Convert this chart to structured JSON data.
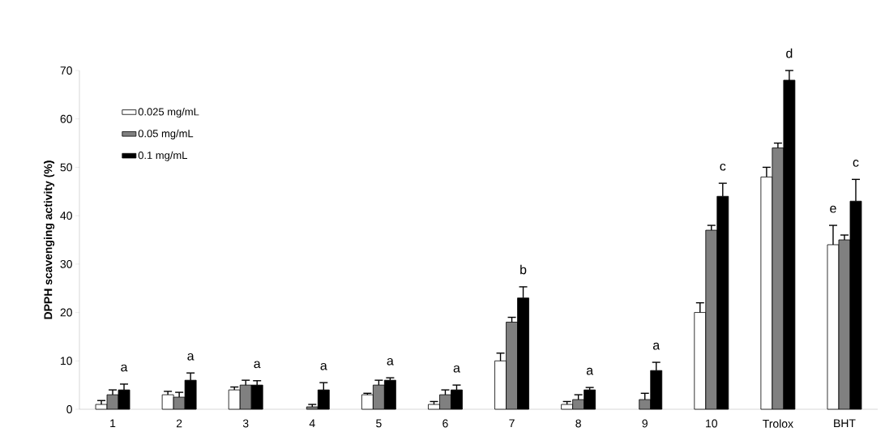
{
  "chart_data": {
    "type": "bar",
    "ylabel": "DPPH scavenging activity (%)",
    "categories": [
      "1",
      "2",
      "3",
      "4",
      "5",
      "6",
      "7",
      "8",
      "9",
      "10",
      "Trolox",
      "BHT"
    ],
    "series": [
      {
        "name": "0.025 mg/mL",
        "color": "#ffffff",
        "values": [
          1,
          3,
          4,
          null,
          3,
          1,
          10,
          1,
          null,
          20,
          48,
          34
        ],
        "errors": [
          0.8,
          0.7,
          0.6,
          null,
          0.3,
          0.6,
          1.6,
          0.6,
          null,
          2,
          2,
          4
        ],
        "value_labels": [
          null,
          null,
          null,
          null,
          null,
          null,
          null,
          null,
          null,
          null,
          null,
          "e"
        ]
      },
      {
        "name": "0.05 mg/mL",
        "color": "#808080",
        "values": [
          3,
          2.5,
          5,
          0.5,
          5,
          3,
          18,
          2,
          2,
          37,
          54,
          35
        ],
        "errors": [
          1,
          1,
          1,
          0.5,
          1,
          1,
          1,
          1,
          1.3,
          1,
          1,
          1
        ]
      },
      {
        "name": "0.1 mg/mL",
        "color": "#000000",
        "values": [
          4,
          6,
          5,
          4,
          6,
          4,
          23,
          4,
          8,
          44,
          68,
          43
        ],
        "errors": [
          1.2,
          1.5,
          0.9,
          1.5,
          0.5,
          1,
          2.3,
          0.5,
          1.7,
          2.7,
          2,
          4.5
        ],
        "value_labels": [
          "a",
          "a",
          "a",
          "a",
          "a",
          "a",
          "b",
          "a",
          "a",
          "c",
          "d",
          "c"
        ]
      }
    ],
    "ylim": [
      0,
      70
    ],
    "yticks": [
      0,
      10,
      20,
      30,
      40,
      50,
      60,
      70
    ],
    "legend": "top left",
    "grid": false
  }
}
